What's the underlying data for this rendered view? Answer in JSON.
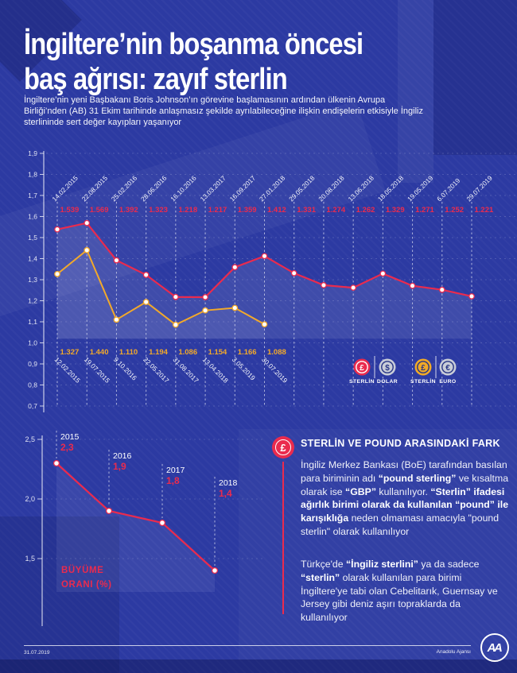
{
  "header": {
    "title_line1": "İngiltere’nin boşanma öncesi",
    "title_line2": "baş ağrısı: zayıf sterlin",
    "subtitle": "İngiltere’nin yeni Başbakanı Boris Johnson’ın görevine başlamasının ardından ülkenin Avrupa Birliği’nden (AB) 31 Ekim tarihinde anlaşmasız şekilde ayrılabileceğine ilişkin endişelerin etkisiyle İngiliz sterlininde sert değer kayıpları yaşanıyor"
  },
  "chart_data": [
    {
      "type": "line",
      "name": "sterlin-exchange-rates",
      "ylim": [
        0.7,
        1.9
      ],
      "ytick_values": [
        1.9,
        1.8,
        1.7,
        1.6,
        1.5,
        1.4,
        1.3,
        1.2,
        1.1,
        1.0,
        0.9,
        0.8,
        0.7
      ],
      "ytick_labels": [
        "1,9",
        "1,8",
        "1,7",
        "1,6",
        "1,5",
        "1,4",
        "1,3",
        "1,2",
        "1,1",
        "1,0",
        "0,9",
        "0,8",
        "0,7"
      ],
      "grid": true,
      "legend_position": "bottom-right",
      "series": [
        {
          "name": "STERLİN/DOLAR",
          "color": "#ea2b4e",
          "dates": [
            "14.02.2015",
            "22.08.2015",
            "25.02.2016",
            "28.06.2016",
            "16.10.2016",
            "13.03.2017",
            "16.09.2017",
            "27.01.2018",
            "29.05.2018",
            "20.08.2018",
            "13.06.2018",
            "18.05.2018",
            "19.05.2019",
            "6.07.2019",
            "29.07.2019"
          ],
          "values": [
            1.539,
            1.569,
            1.392,
            1.323,
            1.218,
            1.217,
            1.359,
            1.412,
            1.331,
            1.274,
            1.262,
            1.329,
            1.271,
            1.252,
            1.221
          ],
          "value_labels": [
            "1.539",
            "1.569",
            "1.392",
            "1.323",
            "1.218",
            "1.217",
            "1.359",
            "1.412",
            "1.331",
            "1.274",
            "1.262",
            "1.329",
            "1.271",
            "1.252",
            "1.221"
          ]
        },
        {
          "name": "STERLİN/EURO",
          "color": "#f2a92a",
          "dates": [
            "12.02.2015",
            "19.07.2015",
            "9.10.2016",
            "22.05.2017",
            "31.08.2017",
            "13.04.2018",
            "3.05.2019",
            "30.07.2019"
          ],
          "values": [
            1.327,
            1.44,
            1.11,
            1.194,
            1.086,
            1.154,
            1.166,
            1.088
          ],
          "value_labels": [
            "1.327",
            "1.440",
            "1.110",
            "1.194",
            "1.086",
            "1.154",
            "1.166",
            "1.088"
          ]
        }
      ],
      "legend": {
        "items": [
          {
            "label": "STERLİN",
            "symbol": "£",
            "coin_color": "#ea2b4e",
            "ink": "#ffffff"
          },
          {
            "label": "DOLAR",
            "symbol": "$",
            "coin_color": "#c9cdd8",
            "ink": "#273585"
          },
          {
            "label": "STERLİN",
            "symbol": "£",
            "coin_color": "#f0a927",
            "ink": "#273585"
          },
          {
            "label": "EURO",
            "symbol": "€",
            "coin_color": "#c9cdd8",
            "ink": "#273585"
          }
        ]
      }
    },
    {
      "type": "line",
      "name": "buyume-orani",
      "label_lines": [
        "BÜYÜME",
        "ORANI (%)"
      ],
      "categories": [
        "2015",
        "2016",
        "2017",
        "2018"
      ],
      "values": [
        2.3,
        1.9,
        1.8,
        1.4
      ],
      "value_labels": [
        "2,3",
        "1,9",
        "1,8",
        "1,4"
      ],
      "ylim": [
        1.2,
        2.5
      ],
      "ytick_values": [
        2.5,
        2.0,
        1.5
      ],
      "ytick_labels": [
        "2,5",
        "2,0",
        "1,5"
      ],
      "color": "#ea2b4e"
    }
  ],
  "infobox": {
    "icon_symbol": "£",
    "title": "STERLİN VE POUND ARASINDAKİ FARK",
    "paragraphs": [
      {
        "segments": [
          {
            "text": "İngiliz Merkez Bankası (BoE) tarafından basılan para biriminin adı ",
            "bold": false
          },
          {
            "text": "“pound sterling”",
            "bold": true
          },
          {
            "text": " ve kısaltma olarak ise ",
            "bold": false
          },
          {
            "text": "“GBP”",
            "bold": true
          },
          {
            "text": " kullanılıyor. ",
            "bold": false
          },
          {
            "text": "“Sterlin” ifadesi ağırlık birimi olarak da kullanılan “pound” ile karışıklığa",
            "bold": true
          },
          {
            "text": " neden olmaması amacıyla \"pound sterlin\" olarak kullanılıyor",
            "bold": false
          }
        ]
      },
      {
        "segments": [
          {
            "text": "Türkçe'de ",
            "bold": false
          },
          {
            "text": "“İngiliz sterlini”",
            "bold": true
          },
          {
            "text": " ya da sadece ",
            "bold": false
          },
          {
            "text": "“sterlin”",
            "bold": true
          },
          {
            "text": " olarak kullanılan para birimi İngiltere'ye tabi olan Cebelitarık, Guernsay ve Jersey gibi deniz aşırı topraklarda da kullanılıyor",
            "bold": false
          }
        ]
      }
    ]
  },
  "footer": {
    "date": "31.07.2019",
    "agency": "Anadolu Ajansı",
    "logo": "AA"
  },
  "colors": {
    "background": "#2c3aa2",
    "red": "#ea2b4e",
    "yellow": "#f2a92a",
    "coin_grey": "#c9cdd8",
    "white": "#ffffff"
  }
}
